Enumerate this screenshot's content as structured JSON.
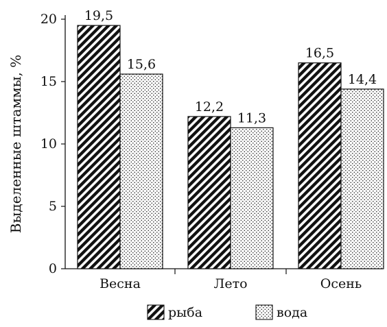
{
  "chart_data": {
    "type": "bar",
    "title": "",
    "xlabel": "",
    "ylabel": "Выделенные штаммы, %",
    "ylim": [
      0,
      20
    ],
    "yticks": [
      0,
      5,
      10,
      15,
      20
    ],
    "grid": false,
    "legend_position": "bottom",
    "categories": [
      "Весна",
      "Лето",
      "Осень"
    ],
    "series": [
      {
        "name": "рыба",
        "values": [
          19.5,
          12.2,
          16.5
        ],
        "labels": [
          "19,5",
          "12,2",
          "16,5"
        ],
        "pattern": "diagonal-hatch"
      },
      {
        "name": "вода",
        "values": [
          15.6,
          11.3,
          14.4
        ],
        "labels": [
          "15,6",
          "11,3",
          "14,4"
        ],
        "pattern": "dots"
      }
    ]
  },
  "colors": {
    "ink": "#111111",
    "background": "#ffffff"
  }
}
